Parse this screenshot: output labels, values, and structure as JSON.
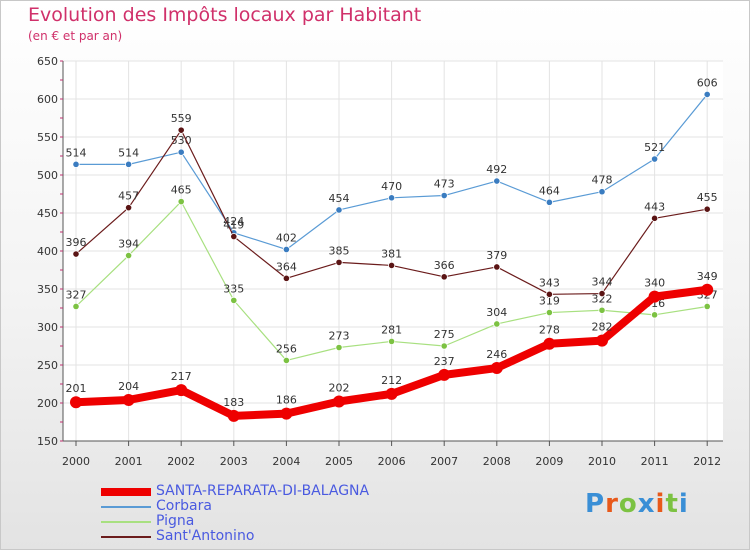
{
  "title": "Evolution des Impôts locaux par Habitant",
  "subtitle": "(en € et par an)",
  "logo": {
    "letters": [
      "P",
      "r",
      "o",
      "x",
      "i",
      "t",
      "i"
    ],
    "colors": [
      "#3a8fd6",
      "#e8591a",
      "#7cc242",
      "#3a8fd6",
      "#e8591a",
      "#7cc242",
      "#3a8fd6"
    ]
  },
  "chart_data": {
    "type": "line",
    "title": "Evolution des Impôts locaux par Habitant",
    "ylabel": "(en € et par an)",
    "ylim": [
      150,
      650
    ],
    "yticks": [
      "150",
      "200",
      "250",
      "300",
      "350",
      "400",
      "450",
      "500",
      "550",
      "600",
      "650"
    ],
    "categories": [
      "2000",
      "2001",
      "2002",
      "2003",
      "2004",
      "2005",
      "2006",
      "2007",
      "2008",
      "2009",
      "2010",
      "2011",
      "2012"
    ],
    "series": [
      {
        "name": "Corbara",
        "color": "#5a9bd5",
        "marker": "#3a7cc0",
        "values": [
          514,
          514,
          530,
          424,
          402,
          454,
          470,
          473,
          492,
          464,
          478,
          521,
          606
        ]
      },
      {
        "name": "Pigna",
        "color": "#a8e080",
        "marker": "#7cc242",
        "values": [
          327,
          394,
          465,
          335,
          256,
          273,
          281,
          275,
          304,
          319,
          322,
          316,
          327
        ]
      },
      {
        "name": "Sant'Antonino",
        "color": "#6b1c1c",
        "marker": "#5a1414",
        "values": [
          396,
          457,
          559,
          419,
          364,
          385,
          381,
          366,
          379,
          343,
          344,
          443,
          455
        ]
      },
      {
        "name": "SANTA-REPARATA-DI-BALAGNA",
        "color": "#ee0000",
        "marker": "#ee0000",
        "values": [
          201,
          204,
          217,
          183,
          186,
          202,
          212,
          237,
          246,
          278,
          282,
          340,
          349
        ]
      }
    ],
    "legend": [
      "SANTA-REPARATA-DI-BALAGNA",
      "Corbara",
      "Pigna",
      "Sant'Antonino"
    ]
  }
}
